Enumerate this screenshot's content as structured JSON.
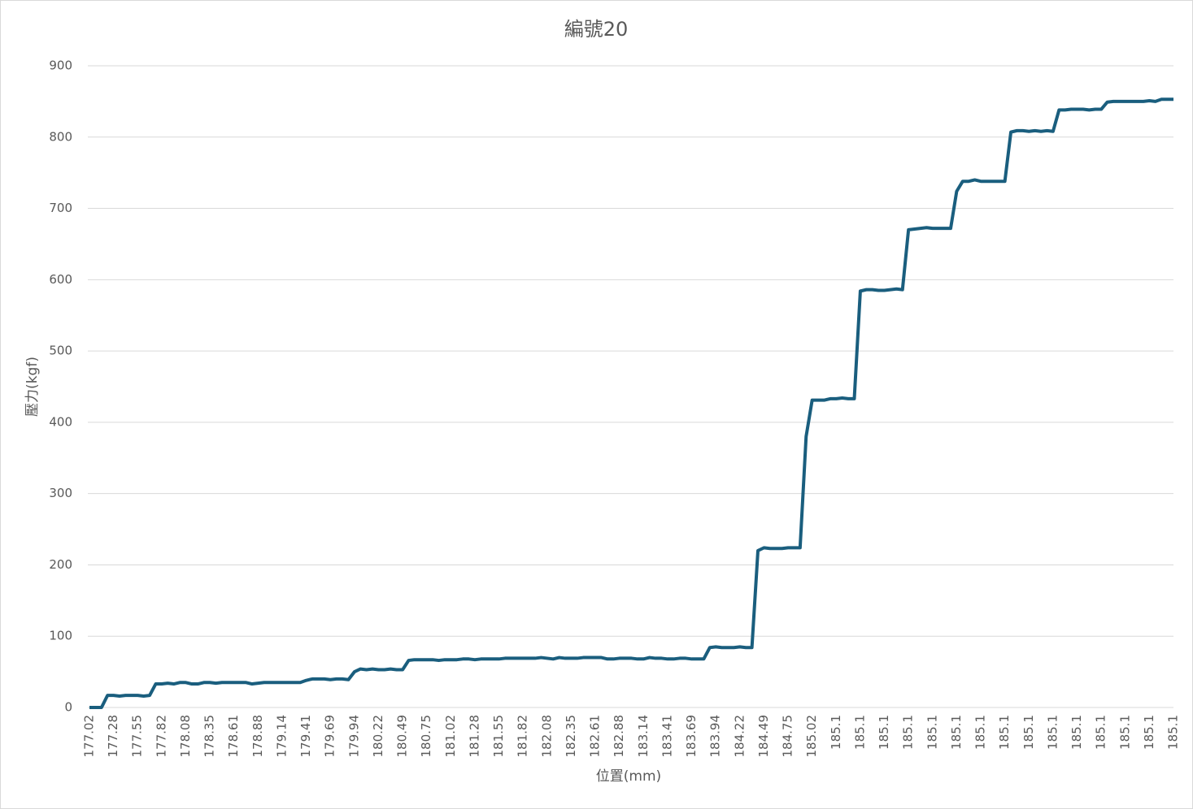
{
  "chart_data": {
    "type": "line",
    "title": "編號20",
    "x_label": "位置(mm)",
    "y_label": "壓力(kgf)",
    "categories": [
      "177.02",
      null,
      null,
      null,
      "177.28",
      null,
      null,
      null,
      "177.55",
      null,
      null,
      null,
      "177.82",
      null,
      null,
      null,
      "178.08",
      null,
      null,
      null,
      "178.35",
      null,
      null,
      null,
      "178.61",
      null,
      null,
      null,
      "178.88",
      null,
      null,
      null,
      "179.14",
      null,
      null,
      null,
      "179.41",
      null,
      null,
      null,
      "179.69",
      null,
      null,
      null,
      "179.94",
      null,
      null,
      null,
      "180.22",
      null,
      null,
      null,
      "180.49",
      null,
      null,
      null,
      "180.75",
      null,
      null,
      null,
      "181.02",
      null,
      null,
      null,
      "181.28",
      null,
      null,
      null,
      "181.55",
      null,
      null,
      null,
      "181.82",
      null,
      null,
      null,
      "182.08",
      null,
      null,
      null,
      "182.35",
      null,
      null,
      null,
      "182.61",
      null,
      null,
      null,
      "182.88",
      null,
      null,
      null,
      "183.14",
      null,
      null,
      null,
      "183.41",
      null,
      null,
      null,
      "183.69",
      null,
      null,
      null,
      "183.94",
      null,
      null,
      null,
      "184.22",
      null,
      null,
      null,
      "184.49",
      null,
      null,
      null,
      "184.75",
      null,
      null,
      null,
      "185.02",
      null,
      null,
      null,
      "185.1",
      null,
      null,
      null,
      "185.1",
      null,
      null,
      null,
      "185.1",
      null,
      null,
      null,
      "185.1",
      null,
      null,
      null,
      "185.1",
      null,
      null,
      null,
      "185.1",
      null,
      null,
      null,
      "185.1",
      null,
      null,
      null,
      "185.1",
      null,
      null,
      null,
      "185.1",
      null,
      null,
      null,
      "185.1",
      null,
      null,
      null,
      "185.1",
      null,
      null,
      null,
      "185.1",
      null,
      null,
      null,
      "185.1",
      null,
      null,
      null,
      "185.1",
      null,
      null,
      null,
      "185.1"
    ],
    "series": [
      {
        "color": "#1a5e7e",
        "values": [
          0,
          0,
          0,
          17,
          17,
          16,
          17,
          17,
          17,
          16,
          17,
          33,
          33,
          34,
          33,
          35,
          35,
          33,
          33,
          35,
          35,
          34,
          35,
          35,
          35,
          35,
          35,
          33,
          34,
          35,
          35,
          35,
          35,
          35,
          35,
          35,
          38,
          40,
          40,
          40,
          39,
          40,
          40,
          39,
          50,
          54,
          53,
          54,
          53,
          53,
          54,
          53,
          53,
          66,
          67,
          67,
          67,
          67,
          66,
          67,
          67,
          67,
          68,
          68,
          67,
          68,
          68,
          68,
          68,
          69,
          69,
          69,
          69,
          69,
          69,
          70,
          69,
          68,
          70,
          69,
          69,
          69,
          70,
          70,
          70,
          70,
          68,
          68,
          69,
          69,
          69,
          68,
          68,
          70,
          69,
          69,
          68,
          68,
          69,
          69,
          68,
          68,
          68,
          84,
          85,
          84,
          84,
          84,
          85,
          84,
          84,
          220,
          224,
          223,
          223,
          223,
          224,
          224,
          224,
          380,
          431,
          431,
          431,
          433,
          433,
          434,
          433,
          433,
          584,
          586,
          586,
          585,
          585,
          586,
          587,
          586,
          670,
          671,
          672,
          673,
          672,
          672,
          672,
          672,
          724,
          738,
          738,
          740,
          738,
          738,
          738,
          738,
          738,
          807,
          809,
          809,
          808,
          809,
          808,
          809,
          808,
          838,
          838,
          839,
          839,
          839,
          838,
          839,
          839,
          849,
          850,
          850,
          850,
          850,
          850,
          850,
          851,
          850,
          853,
          853,
          853
        ]
      }
    ],
    "ylim": [
      0,
      900
    ],
    "yticks": [
      0,
      100,
      200,
      300,
      400,
      500,
      600,
      700,
      800,
      900
    ],
    "grid": true
  }
}
